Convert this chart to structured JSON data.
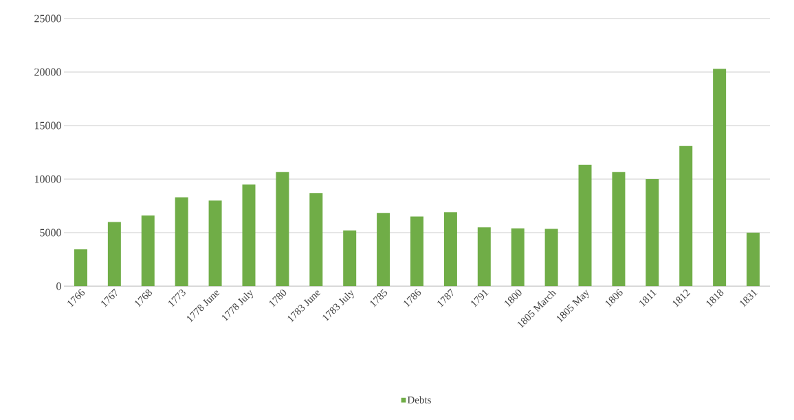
{
  "chart_data": {
    "type": "bar",
    "categories": [
      "1766",
      "1767",
      "1768",
      "1773",
      "1778 June",
      "1778 July",
      "1780",
      "1783 June",
      "1783 July",
      "1785",
      "1786",
      "1787",
      "1791",
      "1800",
      "1805 March",
      "1805 May",
      "1806",
      "1811",
      "1812",
      "1818",
      "1831"
    ],
    "series": [
      {
        "name": "Debts",
        "color": "#70ad47",
        "values": [
          3450,
          6000,
          6600,
          8300,
          8000,
          9500,
          10650,
          8700,
          5200,
          6850,
          6500,
          6900,
          5500,
          5400,
          5350,
          11350,
          10650,
          10000,
          13100,
          20300,
          5000
        ]
      }
    ],
    "ylim": [
      0,
      25000
    ],
    "yticks": [
      0,
      5000,
      10000,
      15000,
      20000,
      25000
    ],
    "grid": "y",
    "legend": "bottom"
  }
}
